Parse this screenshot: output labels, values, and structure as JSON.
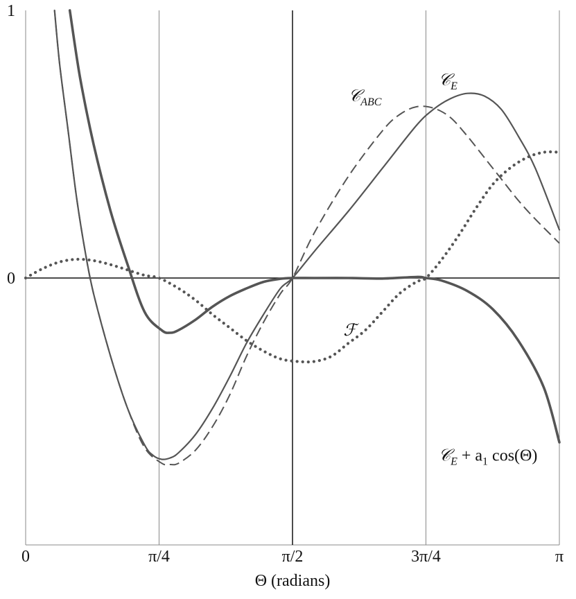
{
  "chart_data": {
    "type": "line",
    "xlabel": "Θ  (radians)",
    "ylabel": "",
    "xlim": [
      0,
      3.14159
    ],
    "ylim": [
      -1,
      1
    ],
    "grid": true,
    "x_ticks": [
      {
        "value": 0,
        "label": "0"
      },
      {
        "value": 0.7854,
        "label": "π/4"
      },
      {
        "value": 1.5708,
        "label": "π/2"
      },
      {
        "value": 2.3562,
        "label": "3π/4"
      },
      {
        "value": 3.14159,
        "label": "π"
      }
    ],
    "y_ticks": [
      {
        "value": 1,
        "label": "1"
      },
      {
        "value": 0,
        "label": "0"
      }
    ],
    "series": [
      {
        "name": "𝒞E + a1 cos(Θ)",
        "style": "solid-thick",
        "color": "#555555",
        "x": [
          0.26,
          0.32,
          0.4,
          0.5,
          0.6,
          0.7,
          0.8,
          0.85,
          0.9,
          1.0,
          1.1,
          1.2,
          1.3,
          1.4,
          1.5,
          1.5708,
          1.7,
          1.9,
          2.1,
          2.3,
          2.3562,
          2.45,
          2.6,
          2.75,
          2.9,
          3.05,
          3.14159
        ],
        "y": [
          1.0,
          0.75,
          0.5,
          0.25,
          0.05,
          -0.13,
          -0.2,
          -0.21,
          -0.2,
          -0.16,
          -0.11,
          -0.07,
          -0.04,
          -0.015,
          -0.003,
          0.0,
          0.0,
          0.0,
          -0.002,
          0.004,
          0.0,
          -0.01,
          -0.05,
          -0.12,
          -0.24,
          -0.42,
          -0.63
        ]
      },
      {
        "name": "𝒞E",
        "style": "solid",
        "color": "#555555",
        "x": [
          0.17,
          0.2,
          0.25,
          0.3,
          0.35,
          0.4,
          0.5,
          0.6,
          0.7,
          0.75,
          0.8,
          0.85,
          0.9,
          1.0,
          1.1,
          1.2,
          1.3,
          1.4,
          1.5,
          1.5708,
          1.7,
          1.9,
          2.1,
          2.3,
          2.4,
          2.5,
          2.6,
          2.7,
          2.8,
          2.9,
          3.0,
          3.14159
        ],
        "y": [
          1.0,
          0.8,
          0.55,
          0.3,
          0.1,
          -0.06,
          -0.3,
          -0.5,
          -0.64,
          -0.68,
          -0.695,
          -0.69,
          -0.67,
          -0.6,
          -0.5,
          -0.38,
          -0.25,
          -0.14,
          -0.04,
          0.0,
          0.1,
          0.25,
          0.41,
          0.57,
          0.63,
          0.67,
          0.69,
          0.68,
          0.63,
          0.53,
          0.41,
          0.18
        ]
      },
      {
        "name": "𝒞ABC",
        "style": "dashed",
        "color": "#555555",
        "x": [
          0.17,
          0.2,
          0.25,
          0.3,
          0.35,
          0.4,
          0.5,
          0.6,
          0.7,
          0.8,
          0.85,
          0.9,
          1.0,
          1.1,
          1.2,
          1.3,
          1.4,
          1.5,
          1.5708,
          1.7,
          1.9,
          2.1,
          2.2,
          2.3,
          2.4,
          2.5,
          2.6,
          2.7,
          2.8,
          2.9,
          3.0,
          3.14159
        ],
        "y": [
          1.0,
          0.8,
          0.55,
          0.3,
          0.1,
          -0.06,
          -0.3,
          -0.5,
          -0.65,
          -0.71,
          -0.715,
          -0.71,
          -0.66,
          -0.57,
          -0.45,
          -0.3,
          -0.17,
          -0.06,
          0.0,
          0.17,
          0.38,
          0.55,
          0.61,
          0.64,
          0.635,
          0.6,
          0.53,
          0.45,
          0.37,
          0.29,
          0.22,
          0.13
        ]
      },
      {
        "name": "ℱ",
        "style": "dotted",
        "color": "#555555",
        "x": [
          0.0,
          0.1,
          0.2,
          0.3,
          0.4,
          0.5,
          0.6,
          0.7,
          0.7854,
          0.9,
          1.0,
          1.1,
          1.2,
          1.3,
          1.4,
          1.5,
          1.6,
          1.7,
          1.8,
          1.9,
          2.0,
          2.1,
          2.2,
          2.3,
          2.3562,
          2.45,
          2.55,
          2.65,
          2.75,
          2.85,
          2.95,
          3.05,
          3.14159
        ],
        "y": [
          0.0,
          0.035,
          0.06,
          0.07,
          0.065,
          0.05,
          0.03,
          0.01,
          0.0,
          -0.04,
          -0.085,
          -0.14,
          -0.19,
          -0.24,
          -0.28,
          -0.31,
          -0.32,
          -0.32,
          -0.3,
          -0.25,
          -0.2,
          -0.13,
          -0.06,
          -0.015,
          0.0,
          0.07,
          0.16,
          0.26,
          0.35,
          0.41,
          0.45,
          0.47,
          0.47
        ]
      }
    ],
    "annotations": [
      {
        "series": 0,
        "x": 2.43,
        "y": -0.7,
        "main": "𝒞",
        "sub": "E",
        "rest": " + a",
        "sub2": "1",
        "tail": " cos(Θ)"
      },
      {
        "series": 1,
        "x": 2.43,
        "y": 0.72,
        "main": "𝒞",
        "sub": "E"
      },
      {
        "series": 2,
        "x": 1.9,
        "y": 0.66,
        "main": "𝒞",
        "sub": "ABC"
      },
      {
        "series": 3,
        "x": 1.87,
        "y": -0.22,
        "main": "ℱ"
      }
    ]
  }
}
